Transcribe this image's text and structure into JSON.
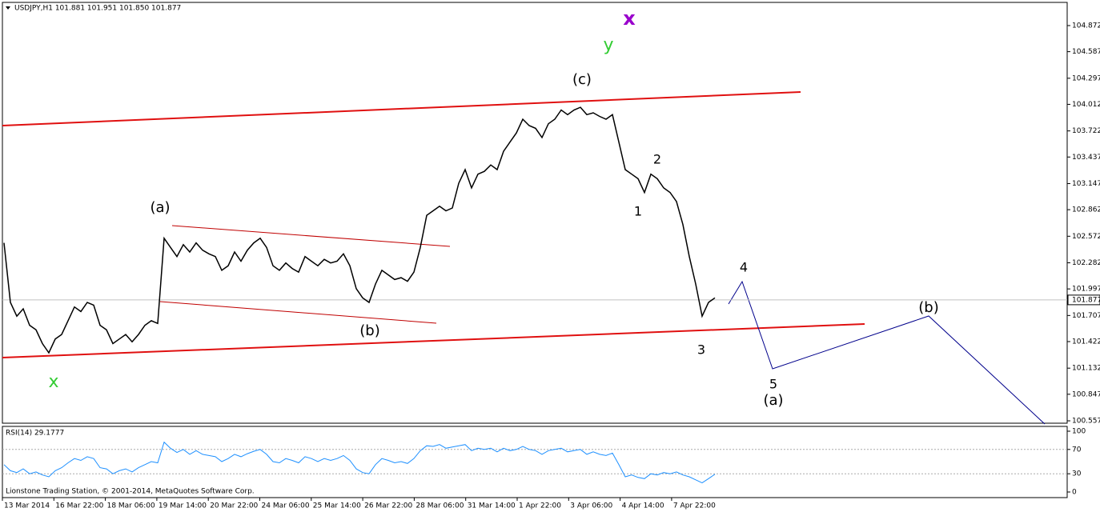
{
  "chart_data": [
    {
      "type": "line",
      "title": "USDJPY,H1  101.881 101.951 101.850 101.877",
      "series": [
        {
          "name": "USDJPY",
          "color": "#000000",
          "values": [
            102.5,
            101.85,
            101.7,
            101.78,
            101.6,
            101.55,
            101.4,
            101.3,
            101.45,
            101.5,
            101.65,
            101.8,
            101.75,
            101.85,
            101.82,
            101.6,
            101.55,
            101.4,
            101.45,
            101.5,
            101.42,
            101.5,
            101.6,
            101.65,
            101.62,
            102.55,
            102.45,
            102.35,
            102.48,
            102.4,
            102.5,
            102.42,
            102.38,
            102.35,
            102.2,
            102.25,
            102.4,
            102.3,
            102.42,
            102.5,
            102.55,
            102.45,
            102.25,
            102.2,
            102.28,
            102.22,
            102.18,
            102.35,
            102.3,
            102.25,
            102.32,
            102.28,
            102.3,
            102.38,
            102.25,
            102.0,
            101.9,
            101.85,
            102.05,
            102.2,
            102.15,
            102.1,
            102.12,
            102.08,
            102.18,
            102.45,
            102.8,
            102.85,
            102.9,
            102.85,
            102.88,
            103.15,
            103.3,
            103.1,
            103.25,
            103.28,
            103.35,
            103.3,
            103.5,
            103.6,
            103.7,
            103.85,
            103.78,
            103.75,
            103.65,
            103.8,
            103.85,
            103.95,
            103.9,
            103.95,
            103.98,
            103.9,
            103.92,
            103.88,
            103.85,
            103.9,
            103.6,
            103.3,
            103.25,
            103.2,
            103.05,
            103.25,
            103.2,
            103.1,
            103.05,
            102.95,
            102.7,
            102.35,
            102.05,
            101.7,
            101.85,
            101.9
          ]
        }
      ],
      "last_price": 101.877,
      "ylim": [
        100.531,
        105.125
      ],
      "yticks": [
        104.872,
        104.587,
        104.297,
        104.012,
        103.722,
        103.437,
        103.147,
        102.862,
        102.572,
        102.282,
        101.997,
        101.707,
        101.422,
        101.132,
        100.847,
        100.557
      ],
      "x_tick_labels": [
        "13 Mar 2014",
        "16 Mar 22:00",
        "18 Mar 06:00",
        "19 Mar 14:00",
        "20 Mar 22:00",
        "24 Mar 06:00",
        "25 Mar 14:00",
        "26 Mar 22:00",
        "28 Mar 06:00",
        "31 Mar 14:00",
        "1 Apr 22:00",
        "3 Apr 06:00",
        "4 Apr 14:00",
        "7 Apr 22:00"
      ],
      "annotations": [
        {
          "text": "(a)",
          "color": "#000000"
        },
        {
          "text": "(b)",
          "color": "#000000"
        },
        {
          "text": "(c)",
          "color": "#000000"
        },
        {
          "text": "x",
          "color": "#33cc33"
        },
        {
          "text": "y",
          "color": "#33cc33"
        },
        {
          "text": "x",
          "color": "#9900cc"
        },
        {
          "text": "1",
          "color": "#000000"
        },
        {
          "text": "2",
          "color": "#000000"
        },
        {
          "text": "3",
          "color": "#000000"
        },
        {
          "text": "4",
          "color": "#000000"
        },
        {
          "text": "5",
          "color": "#000000"
        },
        {
          "text": "(a)",
          "color": "#000000"
        },
        {
          "text": "(b)",
          "color": "#000000"
        }
      ],
      "footer": "Lionstone Trading Station, © 2001-2014, MetaQuotes Software Corp."
    },
    {
      "type": "line",
      "title": "RSI(14) 29.1777",
      "series": [
        {
          "name": "RSI(14)",
          "color": "#1e90ff",
          "values": [
            45,
            35,
            32,
            38,
            30,
            33,
            28,
            25,
            35,
            40,
            48,
            55,
            52,
            58,
            55,
            40,
            38,
            30,
            35,
            38,
            33,
            40,
            45,
            50,
            48,
            82,
            72,
            65,
            70,
            62,
            68,
            62,
            60,
            58,
            50,
            55,
            62,
            58,
            63,
            67,
            70,
            62,
            50,
            48,
            55,
            52,
            48,
            58,
            55,
            50,
            55,
            52,
            55,
            60,
            52,
            38,
            32,
            30,
            45,
            55,
            52,
            48,
            50,
            47,
            55,
            68,
            76,
            75,
            78,
            72,
            74,
            76,
            78,
            68,
            72,
            70,
            72,
            66,
            72,
            68,
            70,
            75,
            70,
            68,
            62,
            68,
            70,
            72,
            66,
            68,
            70,
            62,
            66,
            62,
            60,
            64,
            45,
            25,
            28,
            24,
            22,
            30,
            28,
            32,
            30,
            33,
            28,
            25,
            20,
            15,
            22,
            29.18
          ]
        }
      ],
      "ylim": [
        -9.2,
        107.9
      ],
      "yticks": [
        100,
        70,
        30,
        0
      ],
      "levels": [
        70,
        30
      ]
    }
  ]
}
